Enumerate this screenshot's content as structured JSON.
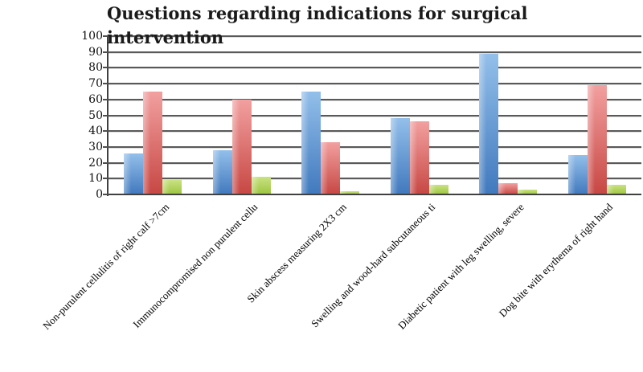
{
  "chart_data": {
    "type": "bar",
    "title": "Questions regarding indications for surgical intervention",
    "categories": [
      "Non-purulent cellulitis of right calf >7cm",
      "Immunocompromised non purulent cellu",
      "Skin abscess  measuring 2X3 cm",
      "Swelling and wood-hard subcutaneous ti",
      "Diabetic patient with leg swelling, severe",
      "Dog bite with erythema of right hand"
    ],
    "series": [
      {
        "name": "blue",
        "color": "#4f86c6",
        "fill_top": "#93bfea",
        "fill_bottom": "#4179be",
        "values": [
          26,
          28,
          65,
          48,
          89,
          25
        ]
      },
      {
        "name": "red",
        "color": "#cc4b45",
        "fill_top": "#f2a0a0",
        "fill_bottom": "#c74743",
        "values": [
          65,
          60,
          33,
          46,
          7,
          69
        ]
      },
      {
        "name": "green",
        "color": "#9ec53f",
        "fill_top": "#c9e283",
        "fill_bottom": "#9dc53f",
        "values": [
          9,
          11,
          2,
          6,
          3,
          6
        ]
      }
    ],
    "xlabel": "",
    "ylabel": "",
    "ylim": [
      0,
      100
    ],
    "ytick_step": 10,
    "ytick_labels": [
      "0",
      "10",
      "20",
      "30",
      "40",
      "50",
      "60",
      "70",
      "80",
      "90",
      "100"
    ],
    "grid": true,
    "legend_position": "none",
    "gridline_color": "#595959",
    "axis_color": "#404040",
    "background_color": "#ffffff"
  }
}
